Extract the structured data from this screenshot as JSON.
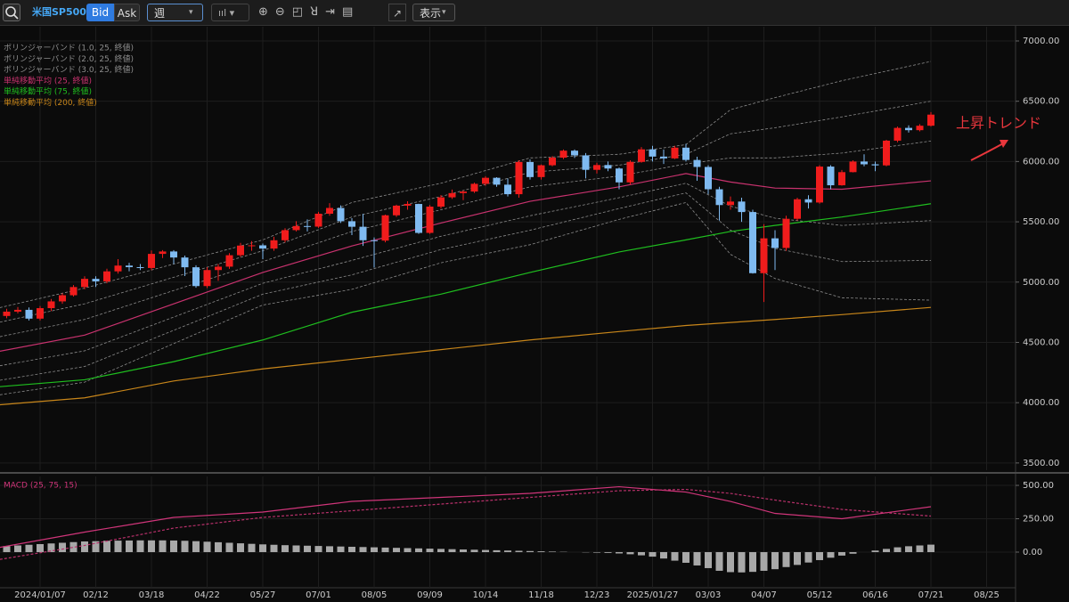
{
  "toolbar": {
    "symbol": "米国SP500",
    "bid": "Bid",
    "ask": "Ask",
    "period": "週",
    "display": "表示"
  },
  "chart_data": [
    {
      "type": "candlestick",
      "annotation": "上昇トレンド",
      "up_color": "#f01c1c",
      "down_color": "#7fbaf0",
      "grid": true,
      "xlim": [
        -3.6,
        87.6
      ],
      "ylim": [
        3440,
        7118
      ],
      "yticks": [
        {
          "value": 3500,
          "label": "3500.00"
        },
        {
          "value": 4000,
          "label": "4000.00"
        },
        {
          "value": 4500,
          "label": "4500.00"
        },
        {
          "value": 5000,
          "label": "5000.00"
        },
        {
          "value": 5500,
          "label": "5500.00"
        },
        {
          "value": 6000,
          "label": "6000.00"
        },
        {
          "value": 6500,
          "label": "6500.00"
        },
        {
          "value": 7000,
          "label": "7000.00"
        }
      ],
      "x": [
        -3,
        -2,
        -1,
        0,
        1,
        2,
        3,
        4,
        5,
        6,
        7,
        8,
        9,
        10,
        11,
        12,
        13,
        14,
        15,
        16,
        17,
        18,
        19,
        20,
        21,
        22,
        23,
        24,
        25,
        26,
        27,
        28,
        29,
        30,
        31,
        32,
        33,
        34,
        35,
        36,
        37,
        38,
        39,
        40,
        41,
        42,
        43,
        44,
        45,
        46,
        47,
        48,
        49,
        50,
        51,
        52,
        53,
        54,
        55,
        56,
        57,
        58,
        59,
        60,
        61,
        62,
        63,
        64,
        65,
        66,
        67,
        68,
        69,
        70,
        71,
        72,
        73,
        74,
        75,
        76,
        77,
        78,
        79,
        80
      ],
      "open": [
        4719,
        4755,
        4770,
        4697,
        4784,
        4840,
        4891,
        4959,
        5027,
        5006,
        5089,
        5137,
        5124,
        5117,
        5234,
        5254,
        5204,
        5123,
        4967,
        5100,
        5128,
        5223,
        5303,
        5305,
        5278,
        5347,
        5431,
        5465,
        5460,
        5567,
        5615,
        5505,
        5459,
        5347,
        5344,
        5554,
        5634,
        5648,
        5408,
        5626,
        5703,
        5738,
        5751,
        5815,
        5865,
        5808,
        5729,
        5996,
        5871,
        5969,
        6032,
        6090,
        6051,
        5931,
        5971,
        5942,
        5827,
        5997,
        6101,
        6041,
        6026,
        6115,
        6013,
        5955,
        5770,
        5639,
        5668,
        5581,
        5074,
        5363,
        5283,
        5525,
        5687,
        5660,
        5958,
        5803,
        5912,
        6000,
        5977,
        5968,
        6173,
        6279,
        6260,
        6297
      ],
      "high": [
        4779,
        4793,
        4790,
        4802,
        4860,
        4907,
        4975,
        5048,
        5048,
        5111,
        5190,
        5160,
        5150,
        5262,
        5265,
        5265,
        5220,
        5140,
        5124,
        5150,
        5240,
        5325,
        5340,
        5320,
        5376,
        5447,
        5505,
        5520,
        5583,
        5655,
        5636,
        5530,
        5566,
        5370,
        5560,
        5642,
        5670,
        5650,
        5640,
        5722,
        5767,
        5760,
        5825,
        5878,
        5870,
        5860,
        6010,
        6018,
        5975,
        6044,
        6100,
        6100,
        6070,
        5990,
        6000,
        5950,
        6010,
        6120,
        6130,
        6100,
        6130,
        6147,
        6040,
        5970,
        5790,
        5710,
        5700,
        5600,
        5480,
        5430,
        5550,
        5700,
        5720,
        5970,
        5970,
        5930,
        6010,
        6060,
        6000,
        6180,
        6290,
        6300,
        6310,
        6410
      ],
      "low": [
        4700,
        4740,
        4682,
        4682,
        4760,
        4820,
        4880,
        4940,
        4960,
        4990,
        5070,
        5090,
        5100,
        5100,
        5200,
        5150,
        5050,
        4953,
        4950,
        5010,
        5110,
        5210,
        5260,
        5190,
        5260,
        5330,
        5420,
        5420,
        5450,
        5550,
        5490,
        5390,
        5300,
        5120,
        5330,
        5540,
        5600,
        5400,
        5400,
        5610,
        5690,
        5680,
        5740,
        5800,
        5790,
        5710,
        5700,
        5850,
        5850,
        5960,
        6020,
        6030,
        5860,
        5900,
        5920,
        5770,
        5810,
        5990,
        6000,
        5980,
        6020,
        6000,
        5840,
        5730,
        5510,
        5600,
        5500,
        5070,
        4835,
        5100,
        5260,
        5510,
        5610,
        5650,
        5770,
        5800,
        5910,
        5960,
        5920,
        5960,
        6160,
        6240,
        6250,
        6290
      ],
      "close": [
        4755,
        4770,
        4697,
        4784,
        4840,
        4891,
        4959,
        5027,
        5006,
        5089,
        5137,
        5124,
        5117,
        5234,
        5254,
        5204,
        5123,
        4967,
        5100,
        5128,
        5223,
        5303,
        5305,
        5278,
        5347,
        5431,
        5465,
        5460,
        5567,
        5615,
        5505,
        5459,
        5347,
        5344,
        5554,
        5634,
        5648,
        5408,
        5626,
        5703,
        5738,
        5751,
        5815,
        5865,
        5808,
        5729,
        5996,
        5871,
        5969,
        6032,
        6090,
        6051,
        5931,
        5971,
        5942,
        5827,
        5997,
        6101,
        6041,
        6026,
        6115,
        6013,
        5955,
        5770,
        5639,
        5668,
        5581,
        5074,
        5363,
        5283,
        5525,
        5687,
        5660,
        5958,
        5803,
        5912,
        6000,
        5977,
        5968,
        6173,
        6279,
        6260,
        6297,
        6389
      ],
      "bands": [
        {
          "name": "ボリンジャーバンド (1.0, 25, 終値)",
          "color": "#8c8c8c",
          "x": [
            -4,
            4,
            12,
            20,
            28,
            36,
            44,
            52,
            58,
            62,
            66,
            72,
            80
          ],
          "upper": [
            4540,
            4690,
            4930,
            5170,
            5420,
            5600,
            5790,
            5880,
            5980,
            6030,
            6030,
            6070,
            6170
          ],
          "lower": [
            4300,
            4430,
            4710,
            4990,
            5180,
            5380,
            5550,
            5700,
            5820,
            5630,
            5530,
            5470,
            5510
          ]
        },
        {
          "name": "ボリンジャーバンド (2.0, 25, 終値)",
          "color": "#8c8c8c",
          "x": [
            -4,
            4,
            12,
            20,
            28,
            36,
            44,
            52,
            58,
            62,
            66,
            72,
            80
          ],
          "upper": [
            4660,
            4820,
            5040,
            5260,
            5540,
            5710,
            5910,
            5970,
            6060,
            6230,
            6280,
            6370,
            6500
          ],
          "lower": [
            4180,
            4300,
            4600,
            4900,
            5060,
            5270,
            5430,
            5610,
            5740,
            5430,
            5280,
            5170,
            5180
          ]
        },
        {
          "name": "ボリンジャーバンド (3.0, 25, 終値)",
          "color": "#8c8c8c",
          "x": [
            -4,
            4,
            12,
            20,
            28,
            36,
            44,
            52,
            58,
            62,
            66,
            72,
            80
          ],
          "upper": [
            4780,
            4950,
            5150,
            5350,
            5660,
            5820,
            6030,
            6060,
            6140,
            6430,
            6530,
            6670,
            6830
          ],
          "lower": [
            4060,
            4170,
            4490,
            4810,
            4940,
            5160,
            5310,
            5520,
            5660,
            5230,
            5030,
            4870,
            4850
          ]
        }
      ],
      "series": [
        {
          "name": "単純移動平均 (25, 終値)",
          "color": "#c8326e",
          "x": [
            -4,
            4,
            12,
            20,
            28,
            36,
            44,
            52,
            58,
            62,
            66,
            72,
            80
          ],
          "values": [
            4420,
            4560,
            4820,
            5080,
            5300,
            5490,
            5670,
            5790,
            5900,
            5830,
            5780,
            5770,
            5840
          ]
        },
        {
          "name": "単純移動平均 (75, 終値)",
          "color": "#1fbf1f",
          "x": [
            -4,
            4,
            12,
            20,
            28,
            36,
            44,
            52,
            58,
            62,
            66,
            72,
            80
          ],
          "values": [
            4130,
            4190,
            4340,
            4520,
            4750,
            4900,
            5080,
            5250,
            5350,
            5420,
            5470,
            5540,
            5650
          ]
        },
        {
          "name": "単純移動平均 (200, 終値)",
          "color": "#c8861a",
          "x": [
            -4,
            4,
            12,
            20,
            28,
            36,
            44,
            52,
            58,
            62,
            66,
            72,
            80
          ],
          "values": [
            3980,
            4040,
            4180,
            4280,
            4360,
            4440,
            4520,
            4590,
            4640,
            4665,
            4690,
            4730,
            4790
          ]
        }
      ]
    },
    {
      "type": "macd",
      "title": "MACD (25, 75, 15)",
      "grid": true,
      "xlim": [
        -3.6,
        87.6
      ],
      "xticks": [
        {
          "value": 0,
          "label": "2024/01/07"
        },
        {
          "value": 5,
          "label": "02/12"
        },
        {
          "value": 10,
          "label": "03/18"
        },
        {
          "value": 15,
          "label": "04/22"
        },
        {
          "value": 20,
          "label": "05/27"
        },
        {
          "value": 25,
          "label": "07/01"
        },
        {
          "value": 30,
          "label": "08/05"
        },
        {
          "value": 35,
          "label": "09/09"
        },
        {
          "value": 40,
          "label": "10/14"
        },
        {
          "value": 45,
          "label": "11/18"
        },
        {
          "value": 50,
          "label": "12/23"
        },
        {
          "value": 55,
          "label": "2025/01/27"
        },
        {
          "value": 60,
          "label": "03/03"
        },
        {
          "value": 65,
          "label": "04/07"
        },
        {
          "value": 70,
          "label": "05/12"
        },
        {
          "value": 75,
          "label": "06/16"
        },
        {
          "value": 80,
          "label": "07/21"
        },
        {
          "value": 85,
          "label": "08/25"
        }
      ],
      "ylim": [
        -267,
        567
      ],
      "yticks": [
        {
          "value": 0,
          "label": "0.00"
        },
        {
          "value": 250,
          "label": "250.00"
        },
        {
          "value": 500,
          "label": "500.00"
        }
      ],
      "series": [
        {
          "color": "#d0357a",
          "dashed": false,
          "x": [
            -4,
            4,
            12,
            20,
            28,
            36,
            44,
            52,
            58,
            62,
            66,
            72,
            80
          ],
          "values": [
            30,
            150,
            260,
            300,
            380,
            410,
            440,
            490,
            450,
            380,
            290,
            250,
            340
          ]
        },
        {
          "color": "#b8306a",
          "dashed": true,
          "x": [
            -4,
            4,
            12,
            20,
            28,
            36,
            44,
            52,
            58,
            62,
            66,
            72,
            80
          ],
          "values": [
            -60,
            50,
            180,
            260,
            310,
            360,
            410,
            460,
            470,
            440,
            390,
            320,
            270
          ]
        }
      ],
      "histogram": {
        "color": "#a8a8a8",
        "x": [
          -3,
          -2,
          -1,
          0,
          1,
          2,
          3,
          4,
          5,
          6,
          7,
          8,
          9,
          10,
          11,
          12,
          13,
          14,
          15,
          16,
          17,
          18,
          19,
          20,
          21,
          22,
          23,
          24,
          25,
          26,
          27,
          28,
          29,
          30,
          31,
          32,
          33,
          34,
          35,
          36,
          37,
          38,
          39,
          40,
          41,
          42,
          43,
          44,
          45,
          46,
          47,
          48,
          49,
          50,
          51,
          52,
          53,
          54,
          55,
          56,
          57,
          58,
          59,
          60,
          61,
          62,
          63,
          64,
          65,
          66,
          67,
          68,
          69,
          70,
          71,
          72,
          73,
          74,
          75,
          76,
          77,
          78,
          79,
          80
        ],
        "values": [
          45,
          50,
          55,
          60,
          65,
          70,
          75,
          80,
          82,
          85,
          86,
          87,
          88,
          88,
          88,
          87,
          85,
          82,
          78,
          74,
          70,
          66,
          62,
          58,
          55,
          52,
          50,
          48,
          46,
          44,
          42,
          40,
          38,
          36,
          34,
          32,
          30,
          28,
          26,
          24,
          22,
          20,
          18,
          16,
          14,
          12,
          10,
          8,
          6,
          4,
          2,
          0,
          -2,
          -4,
          -6,
          -10,
          -16,
          -24,
          -34,
          -48,
          -64,
          -80,
          -100,
          -120,
          -140,
          -150,
          -152,
          -148,
          -140,
          -128,
          -112,
          -96,
          -78,
          -60,
          -42,
          -26,
          -12,
          0,
          12,
          24,
          36,
          44,
          50,
          56
        ]
      }
    }
  ]
}
